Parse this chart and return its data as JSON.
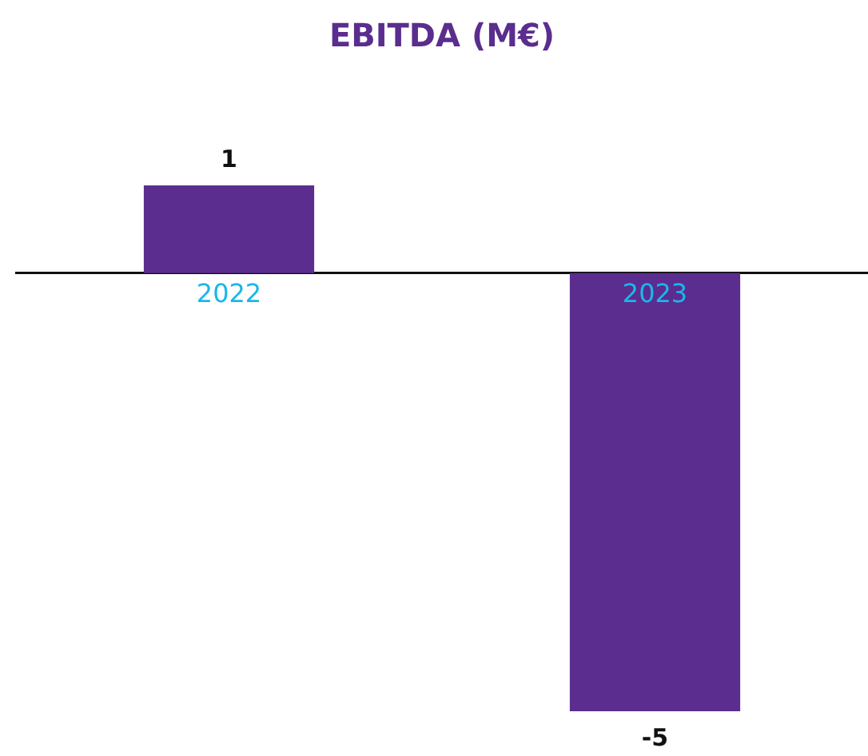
{
  "chart_data": {
    "type": "bar",
    "title": "EBITDA (M€)",
    "categories": [
      "2022",
      "2023"
    ],
    "values": [
      1,
      -5
    ],
    "color": "#5b2d8e",
    "data_labels": true
  }
}
